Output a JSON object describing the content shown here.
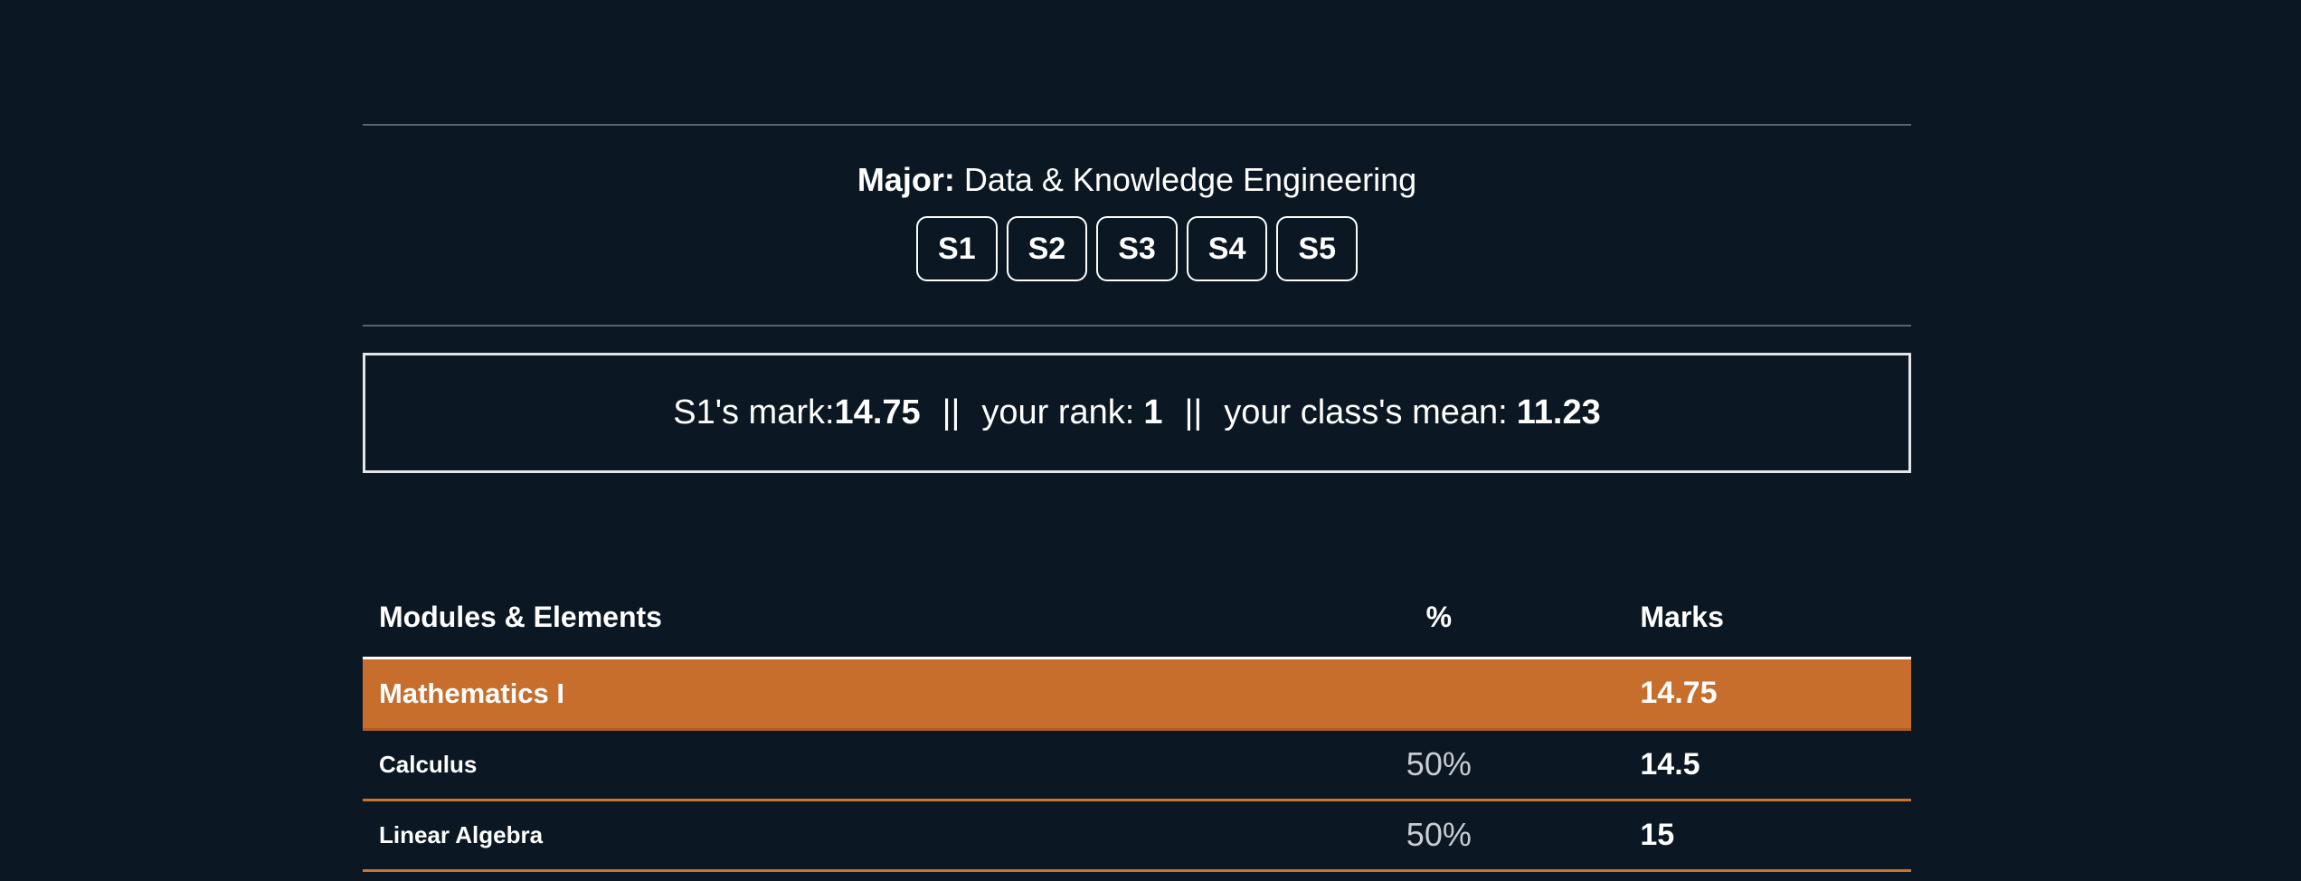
{
  "colors": {
    "background": "#0b1723",
    "accent_orange": "#c76e2d",
    "row_divider_orange": "#c97531",
    "divider_gray": "#59646e",
    "box_border": "#e3e6e9",
    "percent_text": "#c9ccd0",
    "text": "#ffffff"
  },
  "major": {
    "label": "Major:",
    "value": "Data & Knowledge Engineering"
  },
  "semesters": [
    {
      "label": "S1"
    },
    {
      "label": "S2"
    },
    {
      "label": "S3"
    },
    {
      "label": "S4"
    },
    {
      "label": "S5"
    }
  ],
  "summary": {
    "mark_label": "S1's mark:",
    "mark_value": "14.75",
    "separator": "||",
    "rank_label": "your rank:",
    "rank_value": "1",
    "mean_label": "your class's mean:",
    "mean_value": "11.23"
  },
  "table": {
    "headers": {
      "modules": "Modules & Elements",
      "percent": "%",
      "marks": "Marks"
    },
    "rows": [
      {
        "type": "module",
        "name": "Mathematics I",
        "percent": "",
        "marks": "14.75"
      },
      {
        "type": "element",
        "name": "Calculus",
        "percent": "50%",
        "marks": "14.5"
      },
      {
        "type": "element",
        "name": "Linear Algebra",
        "percent": "50%",
        "marks": "15"
      }
    ]
  }
}
